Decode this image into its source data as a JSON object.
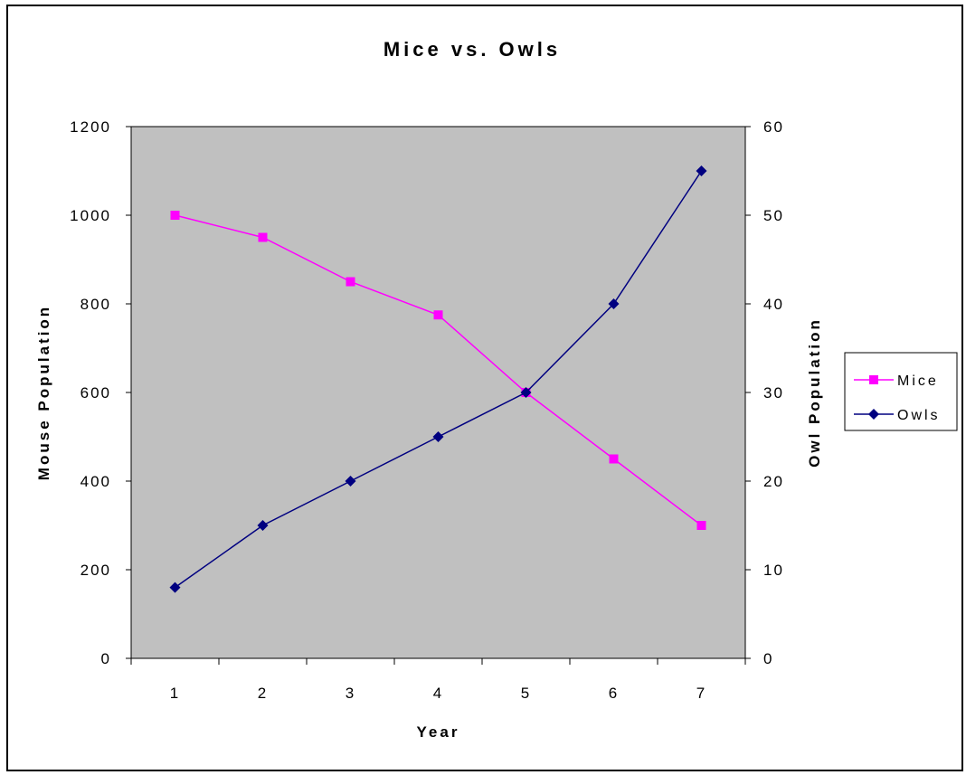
{
  "chart_data": {
    "type": "line",
    "title": "Mice vs. Owls",
    "xlabel": "Year",
    "ylabel": "Mouse Population",
    "y2label": "Owl Population",
    "categories": [
      "1",
      "2",
      "3",
      "4",
      "5",
      "6",
      "7"
    ],
    "ylim": [
      0,
      1200
    ],
    "y2lim": [
      0,
      60
    ],
    "yticks": [
      "0",
      "200",
      "400",
      "600",
      "800",
      "1000",
      "1200"
    ],
    "y2ticks": [
      "0",
      "10",
      "20",
      "30",
      "40",
      "50",
      "60"
    ],
    "plot_background": "#c0c0c0",
    "grid": false,
    "legend_position": "right",
    "series": [
      {
        "name": "Mice",
        "axis": "left",
        "values": [
          1000,
          950,
          850,
          775,
          600,
          450,
          300
        ],
        "color": "#ff00ff",
        "marker": "square"
      },
      {
        "name": "Owls",
        "axis": "right",
        "values": [
          8,
          15,
          20,
          25,
          30,
          40,
          55
        ],
        "color": "#000080",
        "marker": "diamond"
      }
    ]
  }
}
